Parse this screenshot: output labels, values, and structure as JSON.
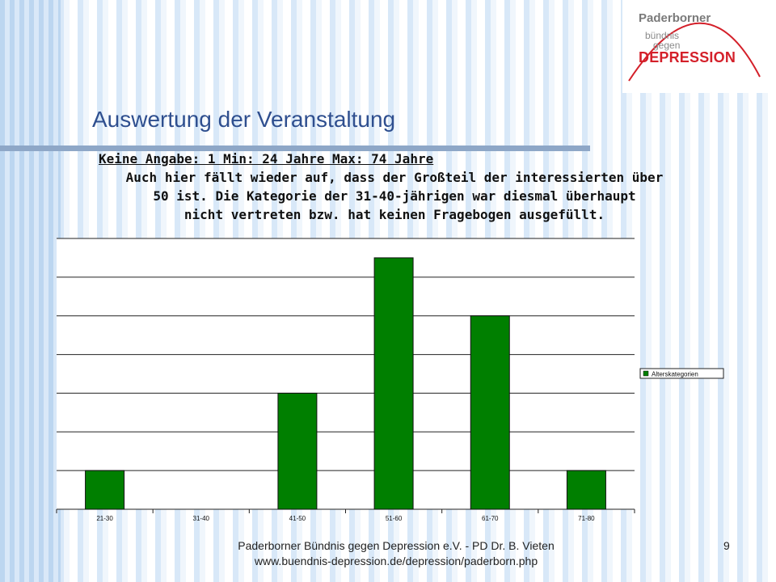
{
  "logo": {
    "line1": "Paderborner",
    "line2": "bündnis",
    "line3": "gegen",
    "line4": "DEPRESSION",
    "colors": {
      "grey": "#7a7a7a",
      "red": "#d4202a"
    }
  },
  "slide": {
    "title": "Auswertung der Veranstaltung",
    "stats": "Keine Angabe: 1 Min: 24 Jahre Max: 74 Jahre",
    "body_lines": [
      "Auch hier fällt wieder auf, dass der Großteil der interessierten über",
      "50 ist. Die Kategorie der 31-40-jährigen war diesmal überhaupt",
      "nicht vertreten bzw. hat keinen Fragebogen ausgefüllt."
    ]
  },
  "chart_data": {
    "type": "bar",
    "categories": [
      "21-30",
      "31-40",
      "41-50",
      "51-60",
      "61-70",
      "71-80"
    ],
    "series": [
      {
        "name": "Alterskategorien",
        "values": [
          1,
          0,
          3,
          6.5,
          5,
          1
        ],
        "color": "#007f00"
      }
    ],
    "ylim": [
      0,
      7
    ],
    "grid": true,
    "legend": "right",
    "title": "",
    "xlabel": "",
    "ylabel": ""
  },
  "footer": {
    "line1": "Paderborner Bündnis gegen Depression e.V. - PD Dr. B. Vieten",
    "line2": "www.buendnis-depression.de/depression/paderborn.php",
    "page_number": "9"
  }
}
